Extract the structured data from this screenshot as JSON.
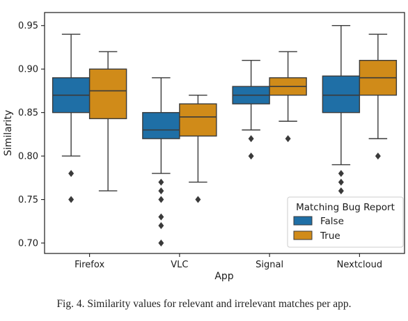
{
  "chart_data": {
    "type": "box",
    "xlabel": "App",
    "ylabel": "Similarity",
    "ylim": [
      0.688,
      0.965
    ],
    "yticks": [
      0.7,
      0.75,
      0.8,
      0.85,
      0.9,
      0.95
    ],
    "ytick_labels": [
      "0.70",
      "0.75",
      "0.80",
      "0.85",
      "0.90",
      "0.95"
    ],
    "categories": [
      "Firefox",
      "VLC",
      "Signal",
      "Nextcloud"
    ],
    "legend": {
      "title": "Matching Bug Report",
      "placement": "lower-right"
    },
    "grid": false,
    "series": [
      {
        "name": "False",
        "color": "#1f6fa6",
        "boxes": [
          {
            "whisker_low": 0.8,
            "q1": 0.85,
            "median": 0.87,
            "q3": 0.89,
            "whisker_high": 0.94,
            "outliers": [
              0.78,
              0.75
            ]
          },
          {
            "whisker_low": 0.78,
            "q1": 0.82,
            "median": 0.83,
            "q3": 0.85,
            "whisker_high": 0.89,
            "outliers": [
              0.77,
              0.76,
              0.75,
              0.73,
              0.72,
              0.7
            ]
          },
          {
            "whisker_low": 0.83,
            "q1": 0.86,
            "median": 0.87,
            "q3": 0.88,
            "whisker_high": 0.91,
            "outliers": [
              0.82,
              0.8
            ]
          },
          {
            "whisker_low": 0.79,
            "q1": 0.85,
            "median": 0.87,
            "q3": 0.892,
            "whisker_high": 0.95,
            "outliers": [
              0.78,
              0.77,
              0.76
            ]
          }
        ]
      },
      {
        "name": "True",
        "color": "#d08b19",
        "boxes": [
          {
            "whisker_low": 0.76,
            "q1": 0.843,
            "median": 0.875,
            "q3": 0.9,
            "whisker_high": 0.92,
            "outliers": []
          },
          {
            "whisker_low": 0.77,
            "q1": 0.823,
            "median": 0.845,
            "q3": 0.86,
            "whisker_high": 0.87,
            "outliers": [
              0.75
            ]
          },
          {
            "whisker_low": 0.84,
            "q1": 0.87,
            "median": 0.88,
            "q3": 0.89,
            "whisker_high": 0.92,
            "outliers": [
              0.82
            ]
          },
          {
            "whisker_low": 0.82,
            "q1": 0.87,
            "median": 0.89,
            "q3": 0.91,
            "whisker_high": 0.94,
            "outliers": [
              0.8
            ]
          }
        ]
      }
    ]
  },
  "caption": "Fig. 4.  Similarity values for relevant and irrelevant matches per app."
}
